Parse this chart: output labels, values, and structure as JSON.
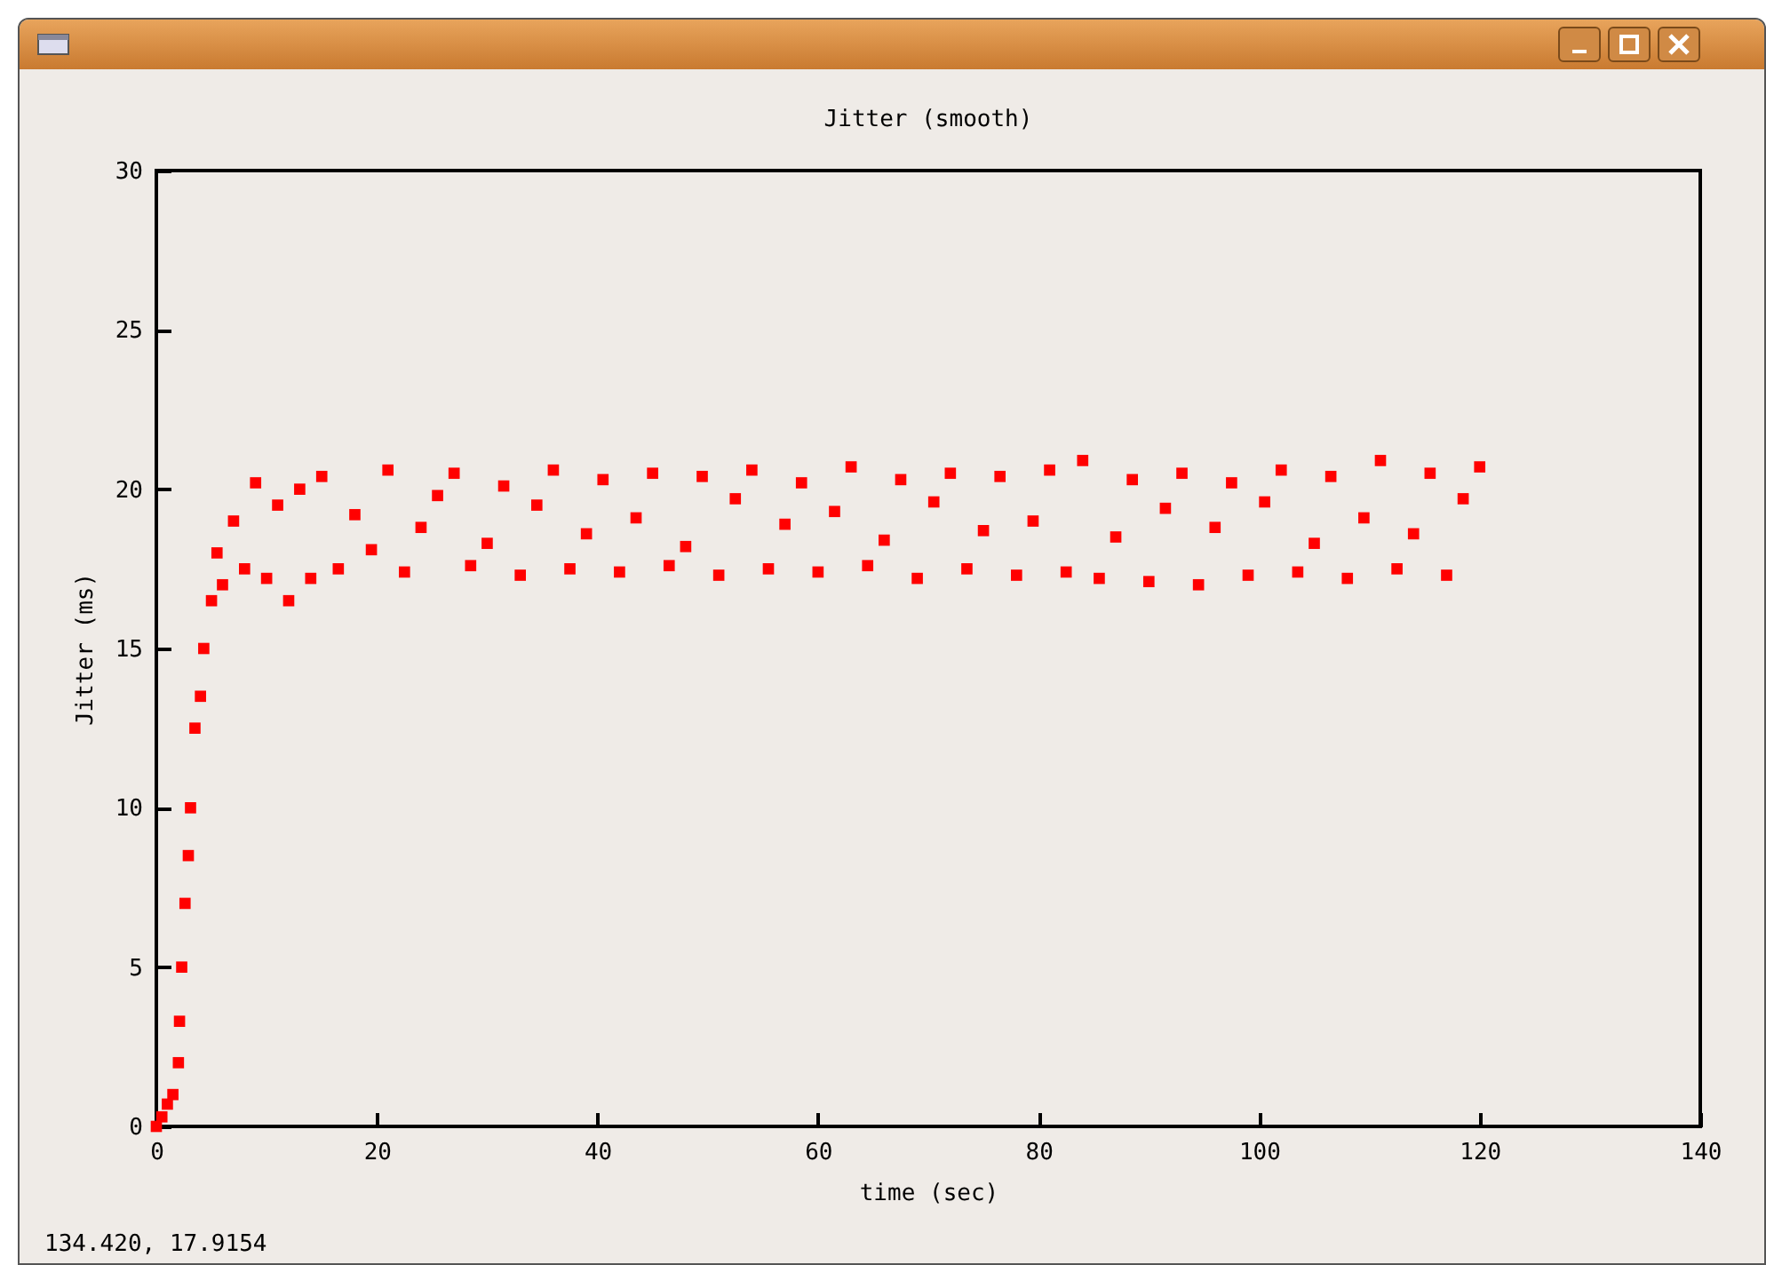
{
  "chart_data": {
    "type": "scatter",
    "title": "Jitter (smooth)",
    "xlabel": "time (sec)",
    "ylabel": "Jitter (ms)",
    "x": [
      0,
      0.5,
      1,
      1.5,
      2,
      2.1,
      2.3,
      2.6,
      2.9,
      3.1,
      3.5,
      4,
      4.3,
      5,
      5.5,
      6,
      7,
      8,
      9,
      10,
      11,
      12,
      13,
      14,
      15,
      16.5,
      18,
      19.5,
      21,
      22.5,
      24,
      25.5,
      27,
      28.5,
      30,
      31.5,
      33,
      34.5,
      36,
      37.5,
      39,
      40.5,
      42,
      43.5,
      45,
      46.5,
      48,
      49.5,
      51,
      52.5,
      54,
      55.5,
      57,
      58.5,
      60,
      61.5,
      63,
      64.5,
      66,
      67.5,
      69,
      70.5,
      72,
      73.5,
      75,
      76.5,
      78,
      79.5,
      81,
      82.5,
      84,
      85.5,
      87,
      88.5,
      90,
      91.5,
      93,
      94.5,
      96,
      97.5,
      99,
      100.5,
      102,
      103.5,
      105,
      106.5,
      108,
      109.5,
      111,
      112.5,
      114,
      115.5,
      117,
      118.5,
      120
    ],
    "values": [
      0,
      0.3,
      0.7,
      1,
      2,
      3.3,
      5,
      7,
      8.5,
      10,
      12.5,
      13.5,
      15,
      16.5,
      18,
      17,
      19,
      17.5,
      20.2,
      17.2,
      19.5,
      16.5,
      20,
      17.2,
      20.4,
      17.5,
      19.2,
      18.1,
      20.6,
      17.4,
      18.8,
      19.8,
      20.5,
      17.6,
      18.3,
      20.1,
      17.3,
      19.5,
      20.6,
      17.5,
      18.6,
      20.3,
      17.4,
      19.1,
      20.5,
      17.6,
      18.2,
      20.4,
      17.3,
      19.7,
      20.6,
      17.5,
      18.9,
      20.2,
      17.4,
      19.3,
      20.7,
      17.6,
      18.4,
      20.3,
      17.2,
      19.6,
      20.5,
      17.5,
      18.7,
      20.4,
      17.3,
      19.0,
      20.6,
      17.4,
      20.9,
      17.2,
      18.5,
      20.3,
      17.1,
      19.4,
      20.5,
      17.0,
      18.8,
      20.2,
      17.3,
      19.6,
      20.6,
      17.4,
      18.3,
      20.4,
      17.2,
      19.1,
      20.9,
      17.5,
      18.6,
      20.5,
      17.3,
      19.7,
      20.7
    ],
    "color": "#ff0000",
    "marker": "square",
    "xlim": [
      0,
      140
    ],
    "xticks": [
      0,
      20,
      40,
      60,
      80,
      100,
      120,
      140
    ],
    "ylim": [
      0,
      30
    ],
    "yticks": [
      0,
      5,
      10,
      15,
      20,
      25,
      30
    ],
    "annotations": [
      "134.420,  17.9154"
    ]
  }
}
